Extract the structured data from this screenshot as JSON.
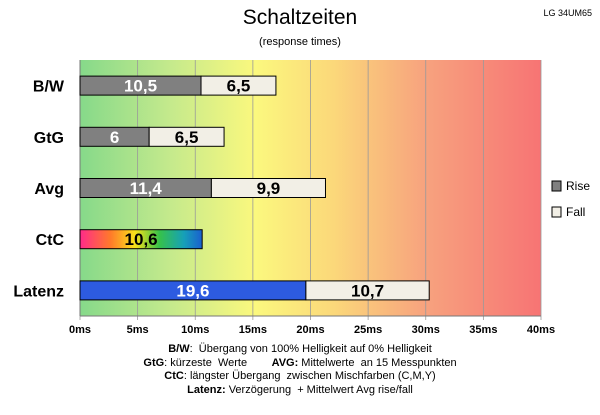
{
  "header": {
    "title": "Schaltzeiten",
    "subtitle": "(response times)",
    "model": "LG 34UM65"
  },
  "chart_data": {
    "type": "bar",
    "orientation": "horizontal",
    "stacked": true,
    "categories": [
      "B/W",
      "GtG",
      "Avg",
      "CtC",
      "Latenz"
    ],
    "series": [
      {
        "name": "Rise",
        "values": [
          10.5,
          6,
          11.4,
          10.6,
          19.6
        ]
      },
      {
        "name": "Fall",
        "values": [
          6.5,
          6.5,
          9.9,
          null,
          10.7
        ]
      }
    ],
    "labels": [
      [
        "10,5",
        "6,5"
      ],
      [
        "6",
        "6,5"
      ],
      [
        "11,4",
        "9,9"
      ],
      [
        "10,6",
        ""
      ],
      [
        "19,6",
        "10,7"
      ]
    ],
    "xlim": [
      0,
      40
    ],
    "xticks": [
      0,
      5,
      10,
      15,
      20,
      25,
      30,
      35,
      40
    ],
    "xtick_labels": [
      "0ms",
      "5ms",
      "10ms",
      "15ms",
      "20ms",
      "25ms",
      "30ms",
      "35ms",
      "40ms"
    ],
    "legend": {
      "placement": "right",
      "items": [
        "Rise",
        "Fall"
      ]
    },
    "background": "gradient green-yellow-red",
    "colors": {
      "rise": "#808080",
      "fall": "#f2efe6",
      "latenz_rise": "#2d5be0",
      "outline": "#000000"
    }
  },
  "footnotes": {
    "bw_key": "B/W",
    "bw_text": ":  Übergang von 100% Helligkeit auf 0% Helligkeit",
    "gtg_key": "GtG",
    "gtg_text": ": kürzeste  Werte        ",
    "avg_key": "AVG:",
    "avg_text": " Mittelwerte  an 15 Messpunkten",
    "ctc_key": "CtC",
    "ctc_text": ": längster Übergang  zwischen Mischfarben (C,M,Y)",
    "lat_key": "Latenz:",
    "lat_text": " Verzögerung  + Mittelwert Avg rise/fall"
  }
}
